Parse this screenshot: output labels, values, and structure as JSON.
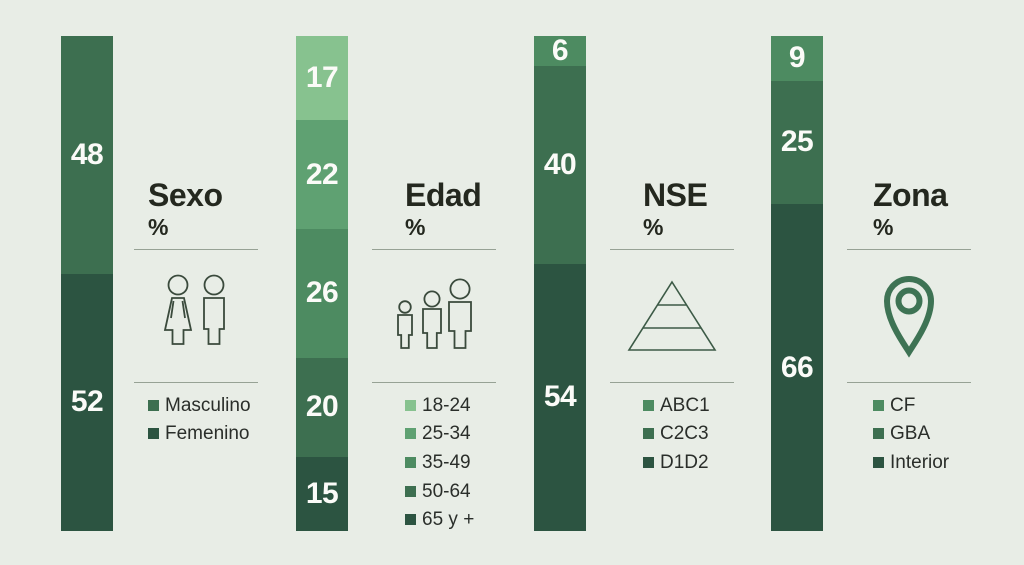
{
  "background_color": "#E8EDE6",
  "palette": {
    "green_1_lightest": "#87C28F",
    "green_2": "#5FA172",
    "green_3": "#4D8B61",
    "green_4": "#3D6F50",
    "green_5_darkest": "#2C5441",
    "title_text": "#24281F",
    "legend_text": "#2A2E2A",
    "bar_value_text": "#FBFBF8",
    "separator_line": "#97A295",
    "icon_stroke": "#3A4A3C",
    "pin_icon_stroke": "#3E7354"
  },
  "chart_data": [
    {
      "type": "bar",
      "stacked": true,
      "orientation": "vertical",
      "title": "Sexo",
      "unit": "%",
      "icon": "male-female-icon",
      "legend_position": "below-icon",
      "segments": [
        {
          "label": "Masculino",
          "value": 48,
          "color": "#3D6F50"
        },
        {
          "label": "Femenino",
          "value": 52,
          "color": "#2C5441"
        }
      ]
    },
    {
      "type": "bar",
      "stacked": true,
      "orientation": "vertical",
      "title": "Edad",
      "unit": "%",
      "icon": "age-groups-people-icon",
      "legend_position": "below-icon",
      "segments": [
        {
          "label": "18-24",
          "value": 17,
          "color": "#87C28F"
        },
        {
          "label": "25-34",
          "value": 22,
          "color": "#5FA172"
        },
        {
          "label": "35-49",
          "value": 26,
          "color": "#4D8B61"
        },
        {
          "label": "50-64",
          "value": 20,
          "color": "#3D6F50"
        },
        {
          "label": "65 y +",
          "value": 15,
          "color": "#2C5441"
        }
      ]
    },
    {
      "type": "bar",
      "stacked": true,
      "orientation": "vertical",
      "title": "NSE",
      "unit": "%",
      "icon": "pyramid-icon",
      "legend_position": "below-icon",
      "segments": [
        {
          "label": "ABC1",
          "value": 6,
          "color": "#4D8B61"
        },
        {
          "label": "C2C3",
          "value": 40,
          "color": "#3D6F50"
        },
        {
          "label": "D1D2",
          "value": 54,
          "color": "#2C5441"
        }
      ]
    },
    {
      "type": "bar",
      "stacked": true,
      "orientation": "vertical",
      "title": "Zona",
      "unit": "%",
      "icon": "map-pin-icon",
      "legend_position": "below-icon",
      "segments": [
        {
          "label": "CF",
          "value": 9,
          "color": "#4D8B61"
        },
        {
          "label": "GBA",
          "value": 25,
          "color": "#3D6F50"
        },
        {
          "label": "Interior",
          "value": 66,
          "color": "#2C5441"
        }
      ]
    }
  ]
}
